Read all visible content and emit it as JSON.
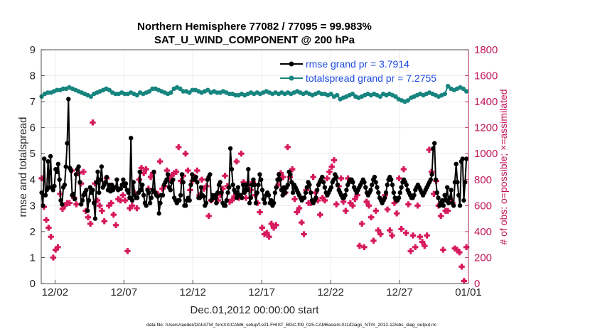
{
  "chart_data": {
    "type": "line",
    "title": "Northern Hemisphere 77082 / 77095 = 99.983%",
    "subtitle": "SAT_U_WIND_COMPONENT @ 200 hPa",
    "xlabel": "Dec.01,2012 00:00:00 start",
    "ylabel_left": "rmse and totalspread",
    "ylabel_right": "# of obs: o=possible; ×=assimilated",
    "footer": "data file: /Users/raeder/DAI/ATM_forcXX/CAM6_setup/f.e21.FHIST_BGC.f09_025.CAM6assim.011/Diags_NTrS_2012-12/obs_diag_output.nc",
    "x_tick_labels": [
      "12/02",
      "12/07",
      "12/12",
      "12/17",
      "12/22",
      "12/27",
      "01/01"
    ],
    "x_tick_days": [
      1,
      6,
      11,
      16,
      21,
      26,
      31
    ],
    "xlim_days": [
      0.0,
      31.0
    ],
    "ylim_left": [
      0,
      9
    ],
    "yticks_left": [
      "0",
      "1",
      "2",
      "3",
      "4",
      "5",
      "6",
      "7",
      "8",
      "9"
    ],
    "ylim_right": [
      0,
      1800
    ],
    "yticks_right": [
      "0",
      "200",
      "400",
      "600",
      "800",
      "1000",
      "1200",
      "1400",
      "1600",
      "1800"
    ],
    "colors": {
      "rmse": "#000000",
      "spread": "#17857f",
      "obs": "#d6185c",
      "legend_text": "#1d4be0",
      "right_axis": "#c2185b",
      "grid": "#ececec"
    },
    "series": [
      {
        "name": "rmse grand pr = 3.7914",
        "axis": "left",
        "marker": "circle",
        "values": [
          3.5,
          3.0,
          4.8,
          3.4,
          3.6,
          4.7,
          3.7,
          4.9,
          3.7,
          3.6,
          3.75,
          4.4,
          4.3,
          4.6,
          4.0,
          3.2,
          3.05,
          3.7,
          3.8,
          4.5,
          5.4,
          7.1,
          4.45,
          4.35,
          3.4,
          3.45,
          3.25,
          4.2,
          4.4,
          4.5,
          3.9,
          3.05,
          3.2,
          3.4,
          3.5,
          3.6,
          2.8,
          3.2,
          3.7,
          3.5,
          3.6,
          3.1,
          2.5,
          3.9,
          4.3,
          3.5,
          4.0,
          4.5,
          3.7,
          3.8,
          3.9,
          4.1,
          3.6,
          3.8,
          3.55,
          3.8,
          3.6,
          3.7,
          3.7,
          4.0,
          3.6,
          3.65,
          3.65,
          3.8,
          4.0,
          3.75,
          3.85,
          3.6,
          3.5,
          3.3,
          5.6,
          3.2,
          3.9,
          3.4,
          3.3,
          3.3,
          3.5,
          4.3,
          3.6,
          3.8,
          3.4,
          3.1,
          3.0,
          3.6,
          3.5,
          3.1,
          3.3,
          3.6,
          4.3,
          3.5,
          3.4,
          3.35,
          2.7,
          3.1,
          3.4,
          3.4,
          3.8,
          3.9,
          4.0,
          4.2,
          3.7,
          3.6,
          3.9,
          4.0,
          3.3,
          3.2,
          3.1,
          3.2,
          3.2,
          3.4,
          4.2,
          3.9,
          3.0,
          3.0,
          3.2,
          3.3,
          3.2,
          3.8,
          4.2,
          4.0,
          4.0,
          4.1,
          3.9,
          3.3,
          3.3,
          3.7,
          3.4,
          3.35,
          3.0,
          3.1,
          4.0,
          4.1,
          4.2,
          3.2,
          3.4,
          3.3,
          3.4,
          3.1,
          3.5,
          3.8,
          3.9,
          3.5,
          3.1,
          3.0,
          3.0,
          3.2,
          3.5,
          3.7,
          5.2,
          4.4,
          3.8,
          3.6,
          3.5,
          3.3,
          3.7,
          3.4,
          3.4,
          3.3,
          3.8,
          3.5,
          3.8,
          3.6,
          4.4,
          3.1,
          3.3,
          3.8,
          4.0,
          3.8,
          3.1,
          3.5,
          3.8,
          4.2,
          4.0,
          3.6,
          3.25,
          3.1,
          3.4,
          3.5,
          3.4,
          3.1,
          3.2,
          3.0,
          3.1,
          3.5,
          3.7,
          4.0,
          4.2,
          4.0,
          3.6,
          3.4,
          3.7,
          3.5,
          3.7,
          3.8,
          4.3,
          4.2,
          3.9,
          3.5,
          3.8,
          3.7,
          3.6,
          3.5,
          3.4,
          3.3,
          3.2,
          3.3,
          3.3,
          3.5,
          3.7,
          3.9,
          3.8,
          3.5,
          3.2,
          3.1,
          3.2,
          3.3,
          3.6,
          3.8,
          3.9,
          4.0,
          4.1,
          3.9,
          3.7,
          3.5,
          3.4,
          3.5,
          3.6,
          3.7,
          3.9,
          4.0,
          4.2,
          4.1,
          3.8,
          3.6,
          3.5,
          3.4,
          3.3,
          3.3,
          3.4,
          3.6,
          3.8,
          3.9,
          4.0,
          4.0,
          3.9,
          3.7,
          3.6,
          3.5,
          3.6,
          3.7,
          3.8,
          3.9,
          4.0,
          3.9,
          3.7,
          3.5,
          3.4,
          3.5,
          3.6,
          3.8,
          4.0,
          4.1,
          3.9,
          3.7,
          3.5,
          3.3,
          3.2,
          3.1,
          3.2,
          3.3,
          3.5,
          3.8,
          4.0,
          4.1,
          4.0,
          3.8,
          3.5,
          3.3,
          3.2,
          3.2,
          3.3,
          3.5,
          3.7,
          3.9,
          4.0,
          3.9,
          3.8,
          3.6,
          3.5,
          3.4,
          3.3,
          3.3,
          3.4,
          3.6,
          3.7,
          3.8,
          3.7,
          3.6,
          3.5,
          3.4,
          3.5,
          3.6,
          3.7,
          3.8,
          3.9,
          4.0,
          4.2,
          5.2,
          5.4,
          4.0,
          3.5,
          3.3,
          3.0,
          3.1,
          3.2,
          3.0,
          3.4,
          3.2,
          3.7,
          3.1,
          3.3,
          3.6,
          3.1,
          3.0,
          3.9,
          4.6,
          3.9,
          3.4,
          3.0,
          4.7,
          4.8,
          3.2,
          3.9,
          4.8
        ]
      },
      {
        "name": "totalspread grand pr = 7.2755",
        "axis": "left",
        "marker": "circle",
        "values": [
          7.2,
          7.3,
          7.35,
          7.35,
          7.4,
          7.45,
          7.45,
          7.5,
          7.5,
          7.55,
          7.5,
          7.45,
          7.4,
          7.35,
          7.3,
          7.25,
          7.2,
          7.3,
          7.35,
          7.4,
          7.45,
          7.5,
          7.45,
          7.35,
          7.3,
          7.3,
          7.35,
          7.3,
          7.3,
          7.35,
          7.3,
          7.25,
          7.35,
          7.3,
          7.35,
          7.4,
          7.5,
          7.5,
          7.45,
          7.4,
          7.35,
          7.3,
          7.35,
          7.5,
          7.55,
          7.5,
          7.4,
          7.4,
          7.35,
          7.45,
          7.45,
          7.4,
          7.35,
          7.4,
          7.45,
          7.35,
          7.4,
          7.35,
          7.35,
          7.4,
          7.35,
          7.3,
          7.3,
          7.25,
          7.25,
          7.3,
          7.25,
          7.3,
          7.35,
          7.3,
          7.35,
          7.3,
          7.35,
          7.4,
          7.35,
          7.3,
          7.35,
          7.3,
          7.35,
          7.3,
          7.35,
          7.3,
          7.35,
          7.4,
          7.35,
          7.3,
          7.35,
          7.3,
          7.25,
          7.3,
          7.35,
          7.3,
          7.3,
          7.25,
          7.3,
          7.2,
          7.25,
          7.1,
          7.15,
          7.2,
          7.25,
          7.3,
          7.2,
          7.15,
          7.2,
          7.25,
          7.3,
          7.25,
          7.3,
          7.25,
          7.2,
          7.3,
          7.25,
          7.3,
          7.25,
          7.2,
          7.1,
          7.05,
          7.0,
          7.05,
          7.15,
          7.2,
          7.25,
          7.3,
          7.25,
          7.3,
          7.35,
          7.3,
          7.25,
          7.2,
          7.25,
          7.3,
          7.6,
          7.5,
          7.45,
          7.5,
          7.55,
          7.5,
          7.4
        ]
      },
      {
        "name": "obs assimilated",
        "axis": "right",
        "marker": "plus",
        "values": [
          810,
          590,
          490,
          430,
          360,
          200,
          260,
          280,
          690,
          575,
          600,
          620,
          620,
          870,
          660,
          610,
          850,
          770,
          860,
          560,
          510,
          460,
          1240,
          770,
          640,
          600,
          560,
          480,
          810,
          600,
          620,
          530,
          450,
          650,
          640,
          680,
          640,
          250,
          580,
          600,
          700,
          580,
          800,
          890,
          850,
          880,
          730,
          820,
          850,
          700,
          690,
          940,
          730,
          750,
          870,
          800,
          830,
          850,
          860,
          1050,
          790,
          830,
          1000,
          870,
          720,
          790,
          820,
          870,
          680,
          800,
          730,
          750,
          520,
          640,
          670,
          660,
          640,
          680,
          730,
          830,
          750,
          630,
          640,
          670,
          940,
          660,
          1000,
          780,
          660,
          760,
          720,
          780,
          680,
          620,
          550,
          430,
          380,
          390,
          360,
          460,
          430,
          450,
          760,
          850,
          820,
          700,
          1050,
          820,
          880,
          650,
          550,
          580,
          470,
          380,
          720,
          620,
          620,
          820,
          700,
          640,
          530,
          660,
          640,
          810,
          860,
          900,
          950,
          610,
          750,
          810,
          630,
          560,
          810,
          620,
          600,
          650,
          680,
          290,
          460,
          280,
          630,
          600,
          510,
          330,
          560,
          410,
          380,
          640,
          680,
          570,
          410,
          370,
          620,
          540,
          810,
          420,
          880,
          390,
          610,
          250,
          370,
          280,
          600,
          360,
          320,
          290,
          370,
          1030,
          860,
          690,
          790,
          600,
          520,
          260,
          560,
          560,
          650,
          620,
          270,
          260,
          240,
          130,
          20,
          280
        ]
      }
    ]
  }
}
